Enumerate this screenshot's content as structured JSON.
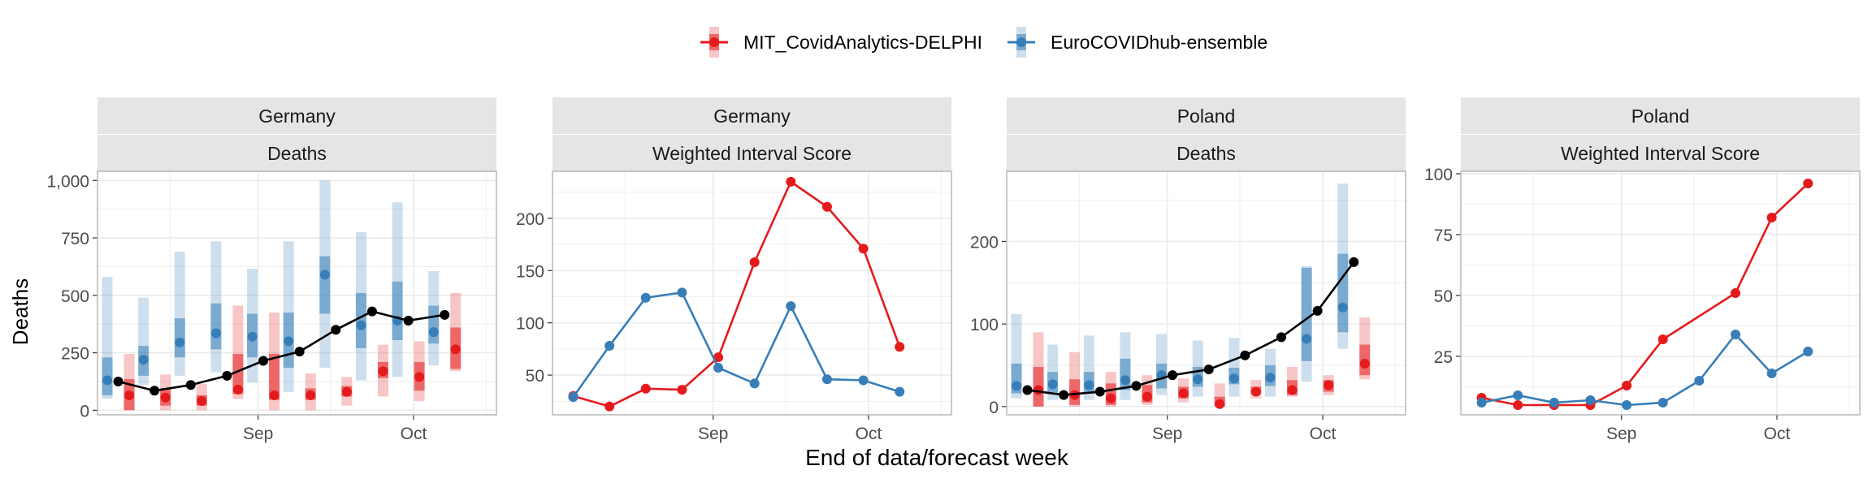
{
  "colors": {
    "mit": "#e41a1c",
    "euro": "#377eb8",
    "observed": "#000000",
    "strip": "#e5e5e5",
    "grid": "#ebebeb",
    "frame": "#b3b3b3"
  },
  "legend": {
    "items": [
      {
        "key": "mit",
        "label": "MIT_CovidAnalytics-DELPHI"
      },
      {
        "key": "euro",
        "label": "EuroCOVIDhub-ensemble"
      }
    ]
  },
  "axis": {
    "ylabel": "Deaths",
    "xlabel": "End of data/forecast week"
  },
  "chart_data": [
    {
      "type": "line",
      "strip": [
        "Germany",
        "Deaths"
      ],
      "xlim": [
        "2021-08-01",
        "2021-10-17"
      ],
      "xticks": [
        {
          "x": "2021-09-01",
          "label": "Sep"
        },
        {
          "x": "2021-10-01",
          "label": "Oct"
        }
      ],
      "ylim": [
        -20,
        1040
      ],
      "yticks": [
        {
          "v": 0,
          "label": "0"
        },
        {
          "v": 250,
          "label": "250"
        },
        {
          "v": 500,
          "label": "500"
        },
        {
          "v": 750,
          "label": "750"
        },
        {
          "v": 1000,
          "label": "1,000"
        }
      ],
      "grid": true,
      "x": [
        "2021-08-05",
        "2021-08-12",
        "2021-08-19",
        "2021-08-26",
        "2021-09-02",
        "2021-09-09",
        "2021-09-16",
        "2021-09-23",
        "2021-09-30",
        "2021-10-07"
      ],
      "observed": [
        125,
        85,
        110,
        150,
        215,
        255,
        350,
        430,
        390,
        415
      ],
      "forecasts": [
        {
          "model": "euro",
          "median": [
            130,
            220,
            295,
            335,
            320,
            300,
            590,
            370,
            390,
            340
          ],
          "i50": [
            [
              65,
              230
            ],
            [
              150,
              280
            ],
            [
              230,
              400
            ],
            [
              265,
              465
            ],
            [
              230,
              420
            ],
            [
              185,
              425
            ],
            [
              420,
              670
            ],
            [
              270,
              510
            ],
            [
              305,
              560
            ],
            [
              290,
              455
            ]
          ],
          "i90": [
            [
              50,
              580
            ],
            [
              110,
              490
            ],
            [
              150,
              690
            ],
            [
              165,
              735
            ],
            [
              120,
              615
            ],
            [
              80,
              735
            ],
            [
              185,
              1000
            ],
            [
              130,
              775
            ],
            [
              145,
              905
            ],
            [
              195,
              605
            ]
          ]
        },
        {
          "model": "mit",
          "median": [
            65,
            55,
            40,
            90,
            65,
            65,
            80,
            170,
            145,
            265
          ],
          "i50": [
            [
              0,
              135
            ],
            [
              20,
              95
            ],
            [
              20,
              65
            ],
            [
              70,
              245
            ],
            [
              45,
              245
            ],
            [
              45,
              95
            ],
            [
              60,
              105
            ],
            [
              140,
              210
            ],
            [
              85,
              210
            ],
            [
              180,
              360
            ]
          ],
          "i90": [
            [
              0,
              245
            ],
            [
              0,
              155
            ],
            [
              0,
              115
            ],
            [
              50,
              455
            ],
            [
              0,
              425
            ],
            [
              0,
              160
            ],
            [
              20,
              145
            ],
            [
              60,
              285
            ],
            [
              40,
              300
            ],
            [
              170,
              510
            ]
          ]
        }
      ]
    },
    {
      "type": "line",
      "strip": [
        "Germany",
        "Weighted Interval Score"
      ],
      "xlim": [
        "2021-08-01",
        "2021-10-17"
      ],
      "xticks": [
        {
          "x": "2021-09-01",
          "label": "Sep"
        },
        {
          "x": "2021-10-01",
          "label": "Oct"
        }
      ],
      "ylim": [
        12,
        245
      ],
      "yticks": [
        {
          "v": 50,
          "label": "50"
        },
        {
          "v": 100,
          "label": "100"
        },
        {
          "v": 150,
          "label": "150"
        },
        {
          "v": 200,
          "label": "200"
        }
      ],
      "grid": true,
      "x": [
        "2021-08-05",
        "2021-08-12",
        "2021-08-19",
        "2021-08-26",
        "2021-09-02",
        "2021-09-09",
        "2021-09-16",
        "2021-09-23",
        "2021-09-30",
        "2021-10-07"
      ],
      "series": [
        {
          "model": "mit",
          "values": [
            30,
            20,
            37,
            36,
            67,
            158,
            235,
            211,
            171,
            77
          ]
        },
        {
          "model": "euro",
          "values": [
            29,
            78,
            124,
            129,
            57,
            42,
            116,
            46,
            45,
            34
          ]
        }
      ]
    },
    {
      "type": "line",
      "strip": [
        "Poland",
        "Deaths"
      ],
      "xlim": [
        "2021-08-01",
        "2021-10-17"
      ],
      "xticks": [
        {
          "x": "2021-09-01",
          "label": "Sep"
        },
        {
          "x": "2021-10-01",
          "label": "Oct"
        }
      ],
      "ylim": [
        -10,
        285
      ],
      "yticks": [
        {
          "v": 0,
          "label": "0"
        },
        {
          "v": 100,
          "label": "100"
        },
        {
          "v": 200,
          "label": "200"
        }
      ],
      "grid": true,
      "x": [
        "2021-08-05",
        "2021-08-12",
        "2021-08-19",
        "2021-08-26",
        "2021-09-02",
        "2021-09-09",
        "2021-09-16",
        "2021-09-23",
        "2021-09-30",
        "2021-10-07"
      ],
      "observed": [
        20,
        14,
        18,
        25,
        38,
        45,
        62,
        84,
        116,
        175
      ],
      "forecasts": [
        {
          "model": "euro",
          "median": [
            25,
            27,
            26,
            32,
            38,
            33,
            34,
            35,
            82,
            120
          ],
          "i50": [
            [
              16,
              52
            ],
            [
              15,
              42
            ],
            [
              17,
              42
            ],
            [
              20,
              58
            ],
            [
              22,
              52
            ],
            [
              24,
              48
            ],
            [
              27,
              47
            ],
            [
              25,
              50
            ],
            [
              55,
              168
            ],
            [
              90,
              185
            ]
          ],
          "i90": [
            [
              10,
              112
            ],
            [
              8,
              75
            ],
            [
              8,
              86
            ],
            [
              8,
              90
            ],
            [
              14,
              88
            ],
            [
              12,
              80
            ],
            [
              12,
              83
            ],
            [
              12,
              70
            ],
            [
              30,
              170
            ],
            [
              70,
              270
            ]
          ]
        },
        {
          "model": "mit",
          "median": [
            20,
            14,
            10,
            12,
            16,
            3,
            18,
            20,
            26,
            52
          ],
          "i50": [
            [
              0,
              48
            ],
            [
              2,
              33
            ],
            [
              2,
              28
            ],
            [
              5,
              26
            ],
            [
              10,
              24
            ],
            [
              0,
              12
            ],
            [
              15,
              24
            ],
            [
              14,
              32
            ],
            [
              18,
              32
            ],
            [
              38,
              75
            ]
          ],
          "i90": [
            [
              0,
              90
            ],
            [
              0,
              66
            ],
            [
              0,
              42
            ],
            [
              2,
              38
            ],
            [
              5,
              34
            ],
            [
              0,
              28
            ],
            [
              10,
              32
            ],
            [
              12,
              48
            ],
            [
              14,
              38
            ],
            [
              33,
              108
            ]
          ]
        }
      ]
    },
    {
      "type": "line",
      "strip": [
        "Poland",
        "Weighted Interval Score"
      ],
      "xlim": [
        "2021-08-01",
        "2021-10-17"
      ],
      "xticks": [
        {
          "x": "2021-09-01",
          "label": "Sep"
        },
        {
          "x": "2021-10-01",
          "label": "Oct"
        }
      ],
      "ylim": [
        1,
        101
      ],
      "yticks": [
        {
          "v": 25,
          "label": "25"
        },
        {
          "v": 50,
          "label": "50"
        },
        {
          "v": 75,
          "label": "75"
        },
        {
          "v": 100,
          "label": "100"
        }
      ],
      "grid": true,
      "x": [
        "2021-08-05",
        "2021-08-12",
        "2021-08-19",
        "2021-08-26",
        "2021-09-02",
        "2021-09-09",
        "2021-09-16",
        "2021-09-23",
        "2021-09-30",
        "2021-10-07"
      ],
      "series": [
        {
          "model": "mit",
          "values": [
            8,
            5,
            5,
            5,
            13,
            32,
            null,
            51,
            82,
            96
          ]
        },
        {
          "model": "euro",
          "values": [
            6,
            9,
            6,
            7,
            5,
            6,
            15,
            34,
            18,
            27
          ]
        }
      ]
    }
  ]
}
